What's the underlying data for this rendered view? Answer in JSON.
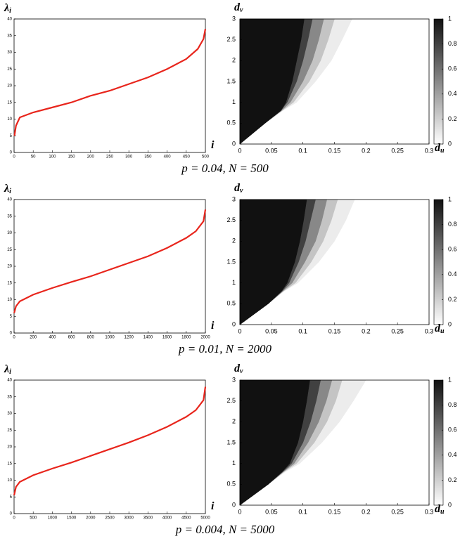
{
  "captions": [
    "p = 0.04,  N = 500",
    "p = 0.01,  N = 2000",
    "p = 0.004,  N = 5000"
  ],
  "chart_data": [
    {
      "type": "line",
      "y_label": "λ",
      "y_label_subscript": "i",
      "x_label": "i",
      "x": [
        1,
        5,
        15,
        50,
        100,
        150,
        200,
        250,
        300,
        350,
        400,
        450,
        480,
        495,
        500
      ],
      "series": [
        {
          "color": "#e8251c",
          "values": [
            5,
            8,
            10.5,
            12,
            13.5,
            15,
            17,
            18.5,
            20.5,
            22.5,
            25,
            28,
            31,
            34,
            37
          ]
        }
      ],
      "xlim": [
        0,
        500
      ],
      "xticks": [
        0,
        50,
        100,
        150,
        200,
        250,
        300,
        350,
        400,
        450,
        500
      ],
      "ylim": [
        0,
        40
      ],
      "yticks": [
        0,
        5,
        10,
        15,
        20,
        25,
        30,
        35,
        40
      ]
    },
    {
      "type": "heatmap",
      "y_label": "d",
      "y_label_subscript": "v",
      "x_label": "d",
      "x_label_subscript": "u",
      "dv": [
        0,
        0.5,
        0.8,
        1,
        1.5,
        2,
        2.5,
        3
      ],
      "levels": [
        {
          "value": 0.08,
          "du": [
            0,
            0.04,
            0.068,
            0.09,
            0.12,
            0.145,
            0.162,
            0.178
          ]
        },
        {
          "value": 0.25,
          "du": [
            0,
            0.04,
            0.067,
            0.085,
            0.11,
            0.128,
            0.14,
            0.15
          ]
        },
        {
          "value": 0.5,
          "du": [
            0,
            0.04,
            0.066,
            0.08,
            0.1,
            0.115,
            0.125,
            0.133
          ]
        },
        {
          "value": 0.8,
          "du": [
            0,
            0.04,
            0.065,
            0.075,
            0.09,
            0.1,
            0.108,
            0.115
          ]
        },
        {
          "value": 1,
          "du": [
            0,
            0.04,
            0.065,
            0.073,
            0.083,
            0.09,
            0.097,
            0.102
          ]
        }
      ],
      "xlim": [
        0,
        0.3
      ],
      "xticks": [
        0,
        0.05,
        0.1,
        0.15,
        0.2,
        0.25,
        0.3
      ],
      "ylim": [
        0,
        3
      ],
      "yticks": [
        0,
        0.5,
        1,
        1.5,
        2,
        2.5,
        3
      ],
      "clim": [
        0,
        1
      ],
      "cticks": [
        0,
        0.2,
        0.4,
        0.6,
        0.8,
        1
      ]
    },
    {
      "type": "line",
      "y_label": "λ",
      "y_label_subscript": "i",
      "x_label": "i",
      "x": [
        1,
        20,
        60,
        200,
        400,
        600,
        800,
        1000,
        1200,
        1400,
        1600,
        1800,
        1900,
        1980,
        2000
      ],
      "series": [
        {
          "color": "#e8251c",
          "values": [
            6,
            8,
            9.5,
            11.5,
            13.5,
            15.3,
            17,
            19,
            21,
            23,
            25.5,
            28.5,
            30.5,
            33.5,
            37
          ]
        }
      ],
      "xlim": [
        0,
        2000
      ],
      "xticks": [
        0,
        200,
        400,
        600,
        800,
        1000,
        1200,
        1400,
        1600,
        1800,
        2000
      ],
      "ylim": [
        0,
        40
      ],
      "yticks": [
        0,
        5,
        10,
        15,
        20,
        25,
        30,
        35,
        40
      ]
    },
    {
      "type": "heatmap",
      "y_label": "d",
      "y_label_subscript": "v",
      "x_label": "d",
      "x_label_subscript": "u",
      "dv": [
        0,
        0.5,
        0.8,
        1,
        1.5,
        2,
        2.5,
        3
      ],
      "levels": [
        {
          "value": 0.08,
          "du": [
            0,
            0.045,
            0.07,
            0.092,
            0.125,
            0.15,
            0.168,
            0.182
          ]
        },
        {
          "value": 0.25,
          "du": [
            0,
            0.045,
            0.069,
            0.088,
            0.113,
            0.132,
            0.145,
            0.155
          ]
        },
        {
          "value": 0.5,
          "du": [
            0,
            0.045,
            0.068,
            0.083,
            0.103,
            0.12,
            0.13,
            0.138
          ]
        },
        {
          "value": 0.8,
          "du": [
            0,
            0.045,
            0.067,
            0.078,
            0.093,
            0.104,
            0.112,
            0.12
          ]
        },
        {
          "value": 1,
          "du": [
            0,
            0.045,
            0.066,
            0.075,
            0.087,
            0.095,
            0.101,
            0.106
          ]
        }
      ],
      "xlim": [
        0,
        0.3
      ],
      "xticks": [
        0,
        0.05,
        0.1,
        0.15,
        0.2,
        0.25,
        0.3
      ],
      "ylim": [
        0,
        3
      ],
      "yticks": [
        0,
        0.5,
        1,
        1.5,
        2,
        2.5,
        3
      ],
      "clim": [
        0,
        1
      ],
      "cticks": [
        0,
        0.2,
        0.4,
        0.6,
        0.8,
        1
      ]
    },
    {
      "type": "line",
      "y_label": "λ",
      "y_label_subscript": "i",
      "x_label": "i",
      "x": [
        1,
        50,
        150,
        500,
        1000,
        1500,
        2000,
        2500,
        3000,
        3500,
        4000,
        4500,
        4750,
        4950,
        5000
      ],
      "series": [
        {
          "color": "#e8251c",
          "values": [
            5.5,
            8,
            9.5,
            11.5,
            13.5,
            15.3,
            17.3,
            19.3,
            21.3,
            23.5,
            26,
            29,
            31,
            34,
            38
          ]
        }
      ],
      "xlim": [
        0,
        5000
      ],
      "xticks": [
        0,
        500,
        1000,
        1500,
        2000,
        2500,
        3000,
        3500,
        4000,
        4500,
        5000
      ],
      "ylim": [
        0,
        40
      ],
      "yticks": [
        0,
        5,
        10,
        15,
        20,
        25,
        30,
        35,
        40
      ]
    },
    {
      "type": "heatmap",
      "y_label": "d",
      "y_label_subscript": "v",
      "x_label": "d",
      "x_label_subscript": "u",
      "dv": [
        0,
        0.5,
        0.8,
        1,
        1.5,
        2,
        2.5,
        3
      ],
      "levels": [
        {
          "value": 0.08,
          "du": [
            0,
            0.045,
            0.072,
            0.095,
            0.13,
            0.158,
            0.18,
            0.2
          ]
        },
        {
          "value": 0.25,
          "du": [
            0,
            0.045,
            0.07,
            0.09,
            0.118,
            0.138,
            0.152,
            0.162
          ]
        },
        {
          "value": 0.5,
          "du": [
            0,
            0.045,
            0.069,
            0.086,
            0.108,
            0.125,
            0.137,
            0.146
          ]
        },
        {
          "value": 0.8,
          "du": [
            0,
            0.045,
            0.068,
            0.082,
            0.1,
            0.112,
            0.121,
            0.128
          ]
        },
        {
          "value": 1,
          "du": [
            0,
            0.045,
            0.067,
            0.079,
            0.092,
            0.1,
            0.106,
            0.111
          ]
        }
      ],
      "xlim": [
        0,
        0.3
      ],
      "xticks": [
        0,
        0.05,
        0.1,
        0.15,
        0.2,
        0.25,
        0.3
      ],
      "ylim": [
        0,
        3
      ],
      "yticks": [
        0,
        0.5,
        1,
        1.5,
        2,
        2.5,
        3
      ],
      "clim": [
        0,
        1
      ],
      "cticks": [
        0,
        0.2,
        0.4,
        0.6,
        0.8,
        1
      ]
    }
  ]
}
